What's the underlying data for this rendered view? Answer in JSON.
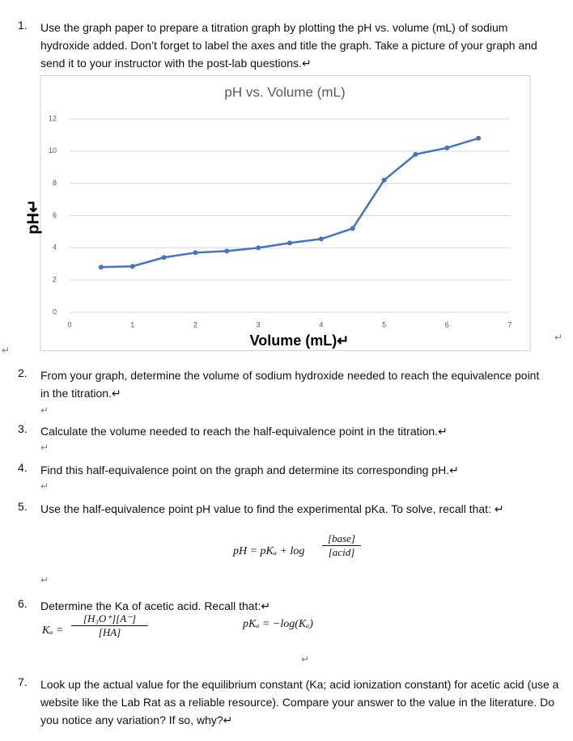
{
  "items": [
    {
      "number": "1.",
      "text": "Use the graph paper to prepare a titration graph by plotting the pH vs. volume (mL) of sodium hydroxide added. Don’t forget to label the axes and title the graph. Take a picture of your graph and send it to your instructor with the post-lab questions.↵"
    },
    {
      "number": "2.",
      "text": "From your graph, determine the volume of sodium hydroxide needed to reach the equivalence point in the titration.↵"
    },
    {
      "number": "3.",
      "text": "Calculate the volume needed to reach the half-equivalence point in the titration.↵"
    },
    {
      "number": "4.",
      "text": "Find this half-equivalence point on the graph and determine its corresponding pH.↵"
    },
    {
      "number": "5.",
      "text": "Use the half-equivalence point pH value to find the experimental pKa. To solve, recall that: ↵"
    },
    {
      "number": "6.",
      "text": "Determine the Ka of acetic acid. Recall that:↵"
    },
    {
      "number": "7.",
      "text": "Look up the actual value for the equilibrium constant (Ka; acid ionization constant) for acetic acid (use a website like the Lab Rat as a reliable resource). Compare your answer to the value in the literature. Do you notice any variation? If so, why?↵"
    }
  ],
  "formula_pka": {
    "left": "pH = pKₐ + log",
    "numerator": "[base]",
    "denominator": "[acid]"
  },
  "formula_ka": {
    "left": "Kₐ =",
    "numerator": "[H₃O⁺][A⁻]",
    "denominator": "[HA]"
  },
  "formula_pka_log": "pKₐ = −log(Kₐ)",
  "blank_marks": [
    "↵",
    "↵",
    "↵",
    "↵",
    "↵",
    "↵",
    "↵"
  ],
  "chart_data": {
    "type": "line",
    "title": "pH vs. Volume (mL)",
    "x_label": "Volume (mL)↵",
    "y_label": "pH↵",
    "x": [
      0.5,
      1,
      1.5,
      2,
      2.5,
      3,
      3.5,
      4,
      4.5,
      5,
      5.5,
      6,
      6.5
    ],
    "values": [
      2.8,
      2.85,
      3.4,
      3.7,
      3.8,
      4.0,
      4.3,
      4.55,
      5.2,
      8.2,
      9.8,
      10.2,
      10.8
    ],
    "color": "#4472c4",
    "xlim": [
      0,
      7
    ],
    "xticks": [
      0,
      1,
      2,
      3,
      4,
      5,
      6,
      7
    ],
    "ylim": [
      0,
      12
    ],
    "yticks": [
      0,
      2,
      4,
      6,
      8,
      10,
      12
    ],
    "grid": true
  }
}
